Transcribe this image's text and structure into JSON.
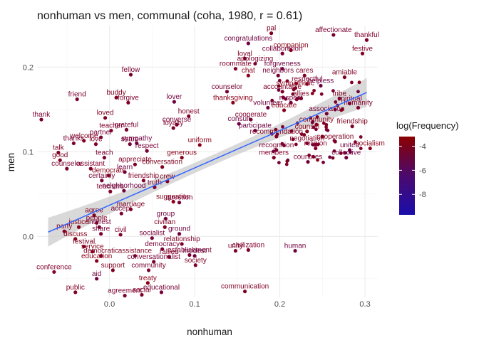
{
  "chart_data": {
    "type": "scatter",
    "title": "nonhuman vs men, communal (coha, 1980, r = 0.61)",
    "xlabel": "nonhuman",
    "ylabel": "men",
    "xlim": [
      -0.085,
      0.315
    ],
    "ylim": [
      -0.072,
      0.249
    ],
    "x_ticks": [
      0.0,
      0.1,
      0.2,
      0.3
    ],
    "x_tick_labels": [
      "0.0",
      "0.1",
      "0.2",
      "0.3"
    ],
    "y_ticks": [
      0.0,
      0.1,
      0.2
    ],
    "y_tick_labels": [
      "0.0",
      "0.1",
      "0.2"
    ],
    "grid": true,
    "legend": {
      "title": "log(Frequency)",
      "placement": "right",
      "ticks": [
        -4,
        -6,
        -8
      ],
      "tick_labels": [
        "-4",
        "-6",
        "-8"
      ],
      "range": [
        -9.7,
        -3.2
      ],
      "colors": {
        "low": "#1a0dab",
        "high": "#8b0000"
      }
    },
    "smooth": {
      "x": [
        -0.072,
        0.302
      ],
      "y": [
        0.005,
        0.17
      ],
      "band_halfwidth_ends": 0.017,
      "band_halfwidth_mid": 0.006,
      "color": "#3366ff",
      "band_color": "#cccccc"
    },
    "labeled_points": [
      {
        "label": "pal",
        "x": 0.19,
        "y": 0.24
      },
      {
        "label": "affectionate",
        "x": 0.263,
        "y": 0.238
      },
      {
        "label": "thankful",
        "x": 0.302,
        "y": 0.232
      },
      {
        "label": "congratulations",
        "x": 0.163,
        "y": 0.228
      },
      {
        "label": "companion",
        "x": 0.213,
        "y": 0.22
      },
      {
        "label": "collaboration",
        "x": 0.203,
        "y": 0.216
      },
      {
        "label": "festive",
        "x": 0.297,
        "y": 0.216
      },
      {
        "label": "loyal",
        "x": 0.159,
        "y": 0.21
      },
      {
        "label": "apologizing",
        "x": 0.171,
        "y": 0.204
      },
      {
        "label": "roommate",
        "x": 0.148,
        "y": 0.198
      },
      {
        "label": "forgiveness",
        "x": 0.203,
        "y": 0.198
      },
      {
        "label": "chat",
        "x": 0.163,
        "y": 0.19
      },
      {
        "label": "neighbors",
        "x": 0.198,
        "y": 0.19
      },
      {
        "label": "cares",
        "x": 0.229,
        "y": 0.19
      },
      {
        "label": "amiable",
        "x": 0.276,
        "y": 0.188
      },
      {
        "label": "fellow",
        "x": 0.025,
        "y": 0.191
      },
      {
        "label": "respectful",
        "x": 0.232,
        "y": 0.18
      },
      {
        "label": "helpless",
        "x": 0.248,
        "y": 0.178
      },
      {
        "label": "sympathetic",
        "x": 0.218,
        "y": 0.175
      },
      {
        "label": "counselor",
        "x": 0.138,
        "y": 0.171
      },
      {
        "label": "accountable",
        "x": 0.203,
        "y": 0.171
      },
      {
        "label": "buddy",
        "x": 0.008,
        "y": 0.164
      },
      {
        "label": "friend",
        "x": -0.038,
        "y": 0.162
      },
      {
        "label": "forgive",
        "x": 0.022,
        "y": 0.158
      },
      {
        "label": "lover",
        "x": 0.076,
        "y": 0.159
      },
      {
        "label": "thanksgiving",
        "x": 0.145,
        "y": 0.158
      },
      {
        "label": "respect",
        "x": 0.213,
        "y": 0.158
      },
      {
        "label": "allies",
        "x": 0.225,
        "y": 0.163
      },
      {
        "label": "tribe",
        "x": 0.27,
        "y": 0.163
      },
      {
        "label": "spiritual",
        "x": 0.282,
        "y": 0.157
      },
      {
        "label": "humanity",
        "x": 0.292,
        "y": 0.152
      },
      {
        "label": "volunteer",
        "x": 0.186,
        "y": 0.152
      },
      {
        "label": "educate",
        "x": 0.205,
        "y": 0.149
      },
      {
        "label": "association",
        "x": 0.255,
        "y": 0.145
      },
      {
        "label": "honest",
        "x": 0.093,
        "y": 0.142
      },
      {
        "label": "loved",
        "x": -0.005,
        "y": 0.14
      },
      {
        "label": "thank",
        "x": -0.08,
        "y": 0.138
      },
      {
        "label": "cooperate",
        "x": 0.166,
        "y": 0.138
      },
      {
        "label": "consult",
        "x": 0.152,
        "y": 0.133
      },
      {
        "label": "community",
        "x": 0.243,
        "y": 0.132
      },
      {
        "label": "converse",
        "x": 0.079,
        "y": 0.132
      },
      {
        "label": "loyalty",
        "x": 0.075,
        "y": 0.128
      },
      {
        "label": "friendship",
        "x": 0.285,
        "y": 0.13
      },
      {
        "label": "grateful",
        "x": 0.02,
        "y": 0.126
      },
      {
        "label": "teacher",
        "x": 0.002,
        "y": 0.125
      },
      {
        "label": "participate",
        "x": 0.171,
        "y": 0.125
      },
      {
        "label": "counsel",
        "x": 0.232,
        "y": 0.124
      },
      {
        "label": "partner",
        "x": -0.01,
        "y": 0.117
      },
      {
        "label": "recommendation",
        "x": 0.196,
        "y": 0.118
      },
      {
        "label": "welcome",
        "x": -0.03,
        "y": 0.113
      },
      {
        "label": "thanks",
        "x": -0.042,
        "y": 0.11
      },
      {
        "label": "love",
        "x": -0.016,
        "y": 0.109
      },
      {
        "label": "sympathy",
        "x": 0.032,
        "y": 0.11
      },
      {
        "label": "uniform",
        "x": 0.106,
        "y": 0.108
      },
      {
        "label": "share",
        "x": 0.024,
        "y": 0.109
      },
      {
        "label": "negotiation",
        "x": 0.232,
        "y": 0.11
      },
      {
        "label": "cooperation",
        "x": 0.265,
        "y": 0.112
      },
      {
        "label": "recognition",
        "x": 0.196,
        "y": 0.102
      },
      {
        "label": "religion",
        "x": 0.242,
        "y": 0.104
      },
      {
        "label": "united",
        "x": 0.282,
        "y": 0.102
      },
      {
        "label": "socialism",
        "x": 0.306,
        "y": 0.104
      },
      {
        "label": "respect",
        "x": 0.044,
        "y": 0.101
      },
      {
        "label": "talk",
        "x": -0.06,
        "y": 0.099
      },
      {
        "label": "good",
        "x": -0.058,
        "y": 0.09
      },
      {
        "label": "teach",
        "x": -0.006,
        "y": 0.093
      },
      {
        "label": "members",
        "x": 0.193,
        "y": 0.093
      },
      {
        "label": "collective",
        "x": 0.278,
        "y": 0.093
      },
      {
        "label": "generous",
        "x": 0.085,
        "y": 0.093
      },
      {
        "label": "countries",
        "x": 0.233,
        "y": 0.088
      },
      {
        "label": "appreciate",
        "x": 0.03,
        "y": 0.085
      },
      {
        "label": "conversation",
        "x": 0.062,
        "y": 0.082
      },
      {
        "label": "counselor",
        "x": -0.05,
        "y": 0.08
      },
      {
        "label": "assistant",
        "x": -0.022,
        "y": 0.08
      },
      {
        "label": "learn",
        "x": 0.018,
        "y": 0.076
      },
      {
        "label": "democrats",
        "x": -0.001,
        "y": 0.072
      },
      {
        "label": "certainly",
        "x": -0.009,
        "y": 0.066
      },
      {
        "label": "friendship",
        "x": 0.04,
        "y": 0.066
      },
      {
        "label": "crew",
        "x": 0.068,
        "y": 0.065
      },
      {
        "label": "truth",
        "x": 0.053,
        "y": 0.058
      },
      {
        "label": "teachers",
        "x": 0.001,
        "y": 0.053
      },
      {
        "label": "neighborhood",
        "x": 0.017,
        "y": 0.054
      },
      {
        "label": "suggestion",
        "x": 0.075,
        "y": 0.041
      },
      {
        "label": "question",
        "x": 0.082,
        "y": 0.04
      },
      {
        "label": "marriage",
        "x": 0.025,
        "y": 0.032
      },
      {
        "label": "agree",
        "x": -0.018,
        "y": 0.025
      },
      {
        "label": "accept",
        "x": 0.014,
        "y": 0.027
      },
      {
        "label": "people",
        "x": -0.015,
        "y": 0.016
      },
      {
        "label": "group",
        "x": 0.066,
        "y": 0.021
      },
      {
        "label": "justice",
        "x": -0.036,
        "y": 0.011
      },
      {
        "label": "interest",
        "x": -0.012,
        "y": 0.011
      },
      {
        "label": "party",
        "x": -0.053,
        "y": 0.006
      },
      {
        "label": "civilian",
        "x": 0.065,
        "y": 0.011
      },
      {
        "label": "share",
        "x": -0.01,
        "y": 0.003
      },
      {
        "label": "civil",
        "x": 0.013,
        "y": 0.002
      },
      {
        "label": "ground",
        "x": 0.082,
        "y": 0.003
      },
      {
        "label": "discuss",
        "x": -0.04,
        "y": -0.003
      },
      {
        "label": "socialist",
        "x": 0.05,
        "y": -0.002
      },
      {
        "label": "relationship",
        "x": 0.085,
        "y": -0.009
      },
      {
        "label": "festival",
        "x": -0.03,
        "y": -0.012
      },
      {
        "label": "unity",
        "x": 0.148,
        "y": -0.017
      },
      {
        "label": "civilization",
        "x": 0.163,
        "y": -0.016
      },
      {
        "label": "human",
        "x": 0.218,
        "y": -0.017
      },
      {
        "label": "service",
        "x": -0.02,
        "y": -0.018
      },
      {
        "label": "democracy",
        "x": 0.062,
        "y": -0.015
      },
      {
        "label": "democratic",
        "x": -0.01,
        "y": -0.023
      },
      {
        "label": "assistance",
        "x": 0.03,
        "y": -0.023
      },
      {
        "label": "establishment",
        "x": 0.094,
        "y": -0.022
      },
      {
        "label": "rallied",
        "x": 0.07,
        "y": -0.024
      },
      {
        "label": "modest",
        "x": 0.1,
        "y": -0.023
      },
      {
        "label": "education",
        "x": -0.015,
        "y": -0.029
      },
      {
        "label": "conversationalist",
        "x": 0.052,
        "y": -0.03
      },
      {
        "label": "society",
        "x": 0.101,
        "y": -0.034
      },
      {
        "label": "support",
        "x": 0.004,
        "y": -0.04
      },
      {
        "label": "community",
        "x": 0.046,
        "y": -0.04
      },
      {
        "label": "conference",
        "x": -0.065,
        "y": -0.042
      },
      {
        "label": "aid",
        "x": -0.015,
        "y": -0.05
      },
      {
        "label": "treaty",
        "x": 0.045,
        "y": -0.055
      },
      {
        "label": "educational",
        "x": 0.061,
        "y": -0.066
      },
      {
        "label": "communication",
        "x": 0.159,
        "y": -0.065
      },
      {
        "label": "public",
        "x": -0.04,
        "y": -0.066
      },
      {
        "label": "agreement",
        "x": 0.018,
        "y": -0.07
      },
      {
        "label": "social",
        "x": 0.038,
        "y": -0.069
      }
    ]
  }
}
